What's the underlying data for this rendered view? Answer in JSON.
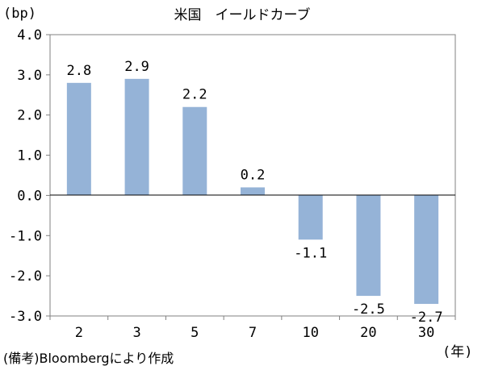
{
  "chart_data": {
    "type": "bar",
    "title": "米国　イールドカーブ",
    "ylabel": "(bp)",
    "xlabel": "(年)",
    "source": "(備考)Bloombergにより作成",
    "categories": [
      "2",
      "3",
      "5",
      "7",
      "10",
      "20",
      "30"
    ],
    "values": [
      2.8,
      2.9,
      2.2,
      0.2,
      -1.1,
      -2.5,
      -2.7
    ],
    "value_labels": [
      "2.8",
      "2.9",
      "2.2",
      "0.2",
      "-1.1",
      "-2.5",
      "-2.7"
    ],
    "ylim": [
      -3.0,
      4.0
    ],
    "yticks": [
      4.0,
      3.0,
      2.0,
      1.0,
      0.0,
      -1.0,
      -2.0,
      -3.0
    ],
    "ytick_labels": [
      "4.0",
      "3.0",
      "2.0",
      "1.0",
      "0.0",
      "-1.0",
      "-2.0",
      "-3.0"
    ],
    "grid": false,
    "legend": "none",
    "colors": {
      "bar": "#95b3d7",
      "axis": "#000000",
      "frame": "#808080"
    }
  }
}
